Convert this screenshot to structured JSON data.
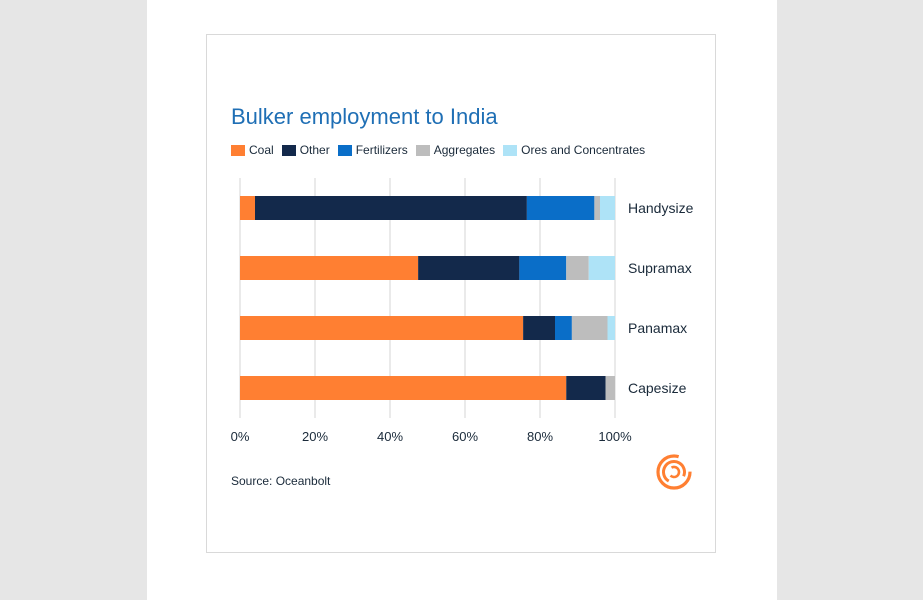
{
  "chart_data": {
    "type": "bar",
    "orientation": "horizontal",
    "stacked": true,
    "title": "Bulker employment to India",
    "categories": [
      "Handysize",
      "Supramax",
      "Panamax",
      "Capesize"
    ],
    "series": [
      {
        "name": "Coal",
        "color": "#ff7f32",
        "values": [
          4,
          47.5,
          75.5,
          87
        ]
      },
      {
        "name": "Other",
        "color": "#13294b",
        "values": [
          72.5,
          27,
          8.5,
          10.5
        ]
      },
      {
        "name": "Fertilizers",
        "color": "#0a6ec8",
        "values": [
          18,
          12.5,
          4.5,
          0
        ]
      },
      {
        "name": "Aggregates",
        "color": "#bdbdbd",
        "values": [
          1.5,
          6,
          9.5,
          2.5
        ]
      },
      {
        "name": "Ores and Concentrates",
        "color": "#aee3f7",
        "values": [
          4,
          7,
          2,
          0
        ]
      }
    ],
    "xlim": [
      0,
      100
    ],
    "x_ticks": [
      "0%",
      "20%",
      "40%",
      "60%",
      "80%",
      "100%"
    ],
    "grid": true,
    "legend_position": "top-left"
  },
  "source": "Source: Oceanbolt",
  "logo": "oceanbolt-logo-icon"
}
